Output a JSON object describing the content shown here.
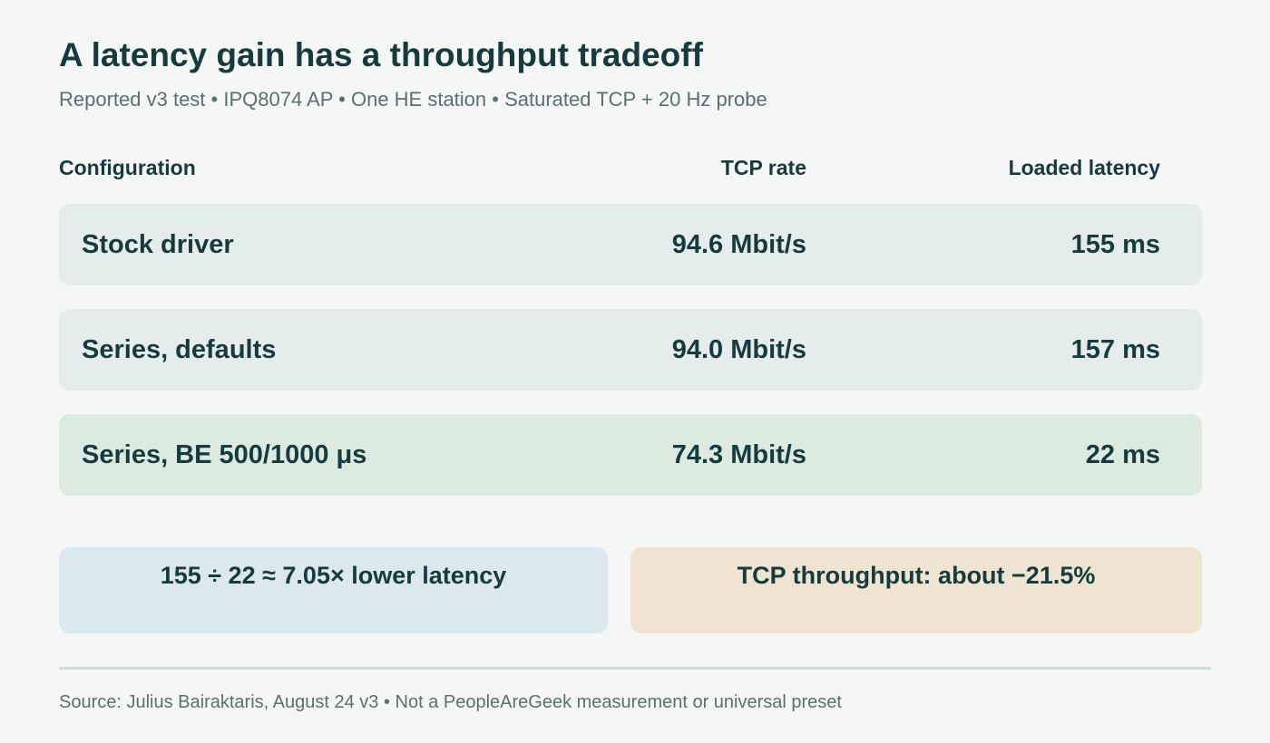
{
  "header": {
    "title": "A latency gain has a throughput tradeoff",
    "subtitle": "Reported v3 test • IPQ8074 AP • One HE station • Saturated TCP + 20 Hz probe"
  },
  "table": {
    "columns": [
      "Configuration",
      "TCP rate",
      "Loaded latency"
    ],
    "rows": [
      [
        "Stock driver",
        "94.6 Mbit/s",
        "155 ms"
      ],
      [
        "Series, defaults",
        "94.0 Mbit/s",
        "157 ms"
      ],
      [
        "Series, BE 500/1000 μs",
        "74.3 Mbit/s",
        "22 ms"
      ]
    ]
  },
  "callouts": [
    "155 ÷ 22 ≈ 7.05× lower latency",
    "TCP throughput: about −21.5%"
  ],
  "footer": "Source: Julius Bairaktaris, August 24 v3 • Not a PeopleAreGeek measurement or universal preset"
}
